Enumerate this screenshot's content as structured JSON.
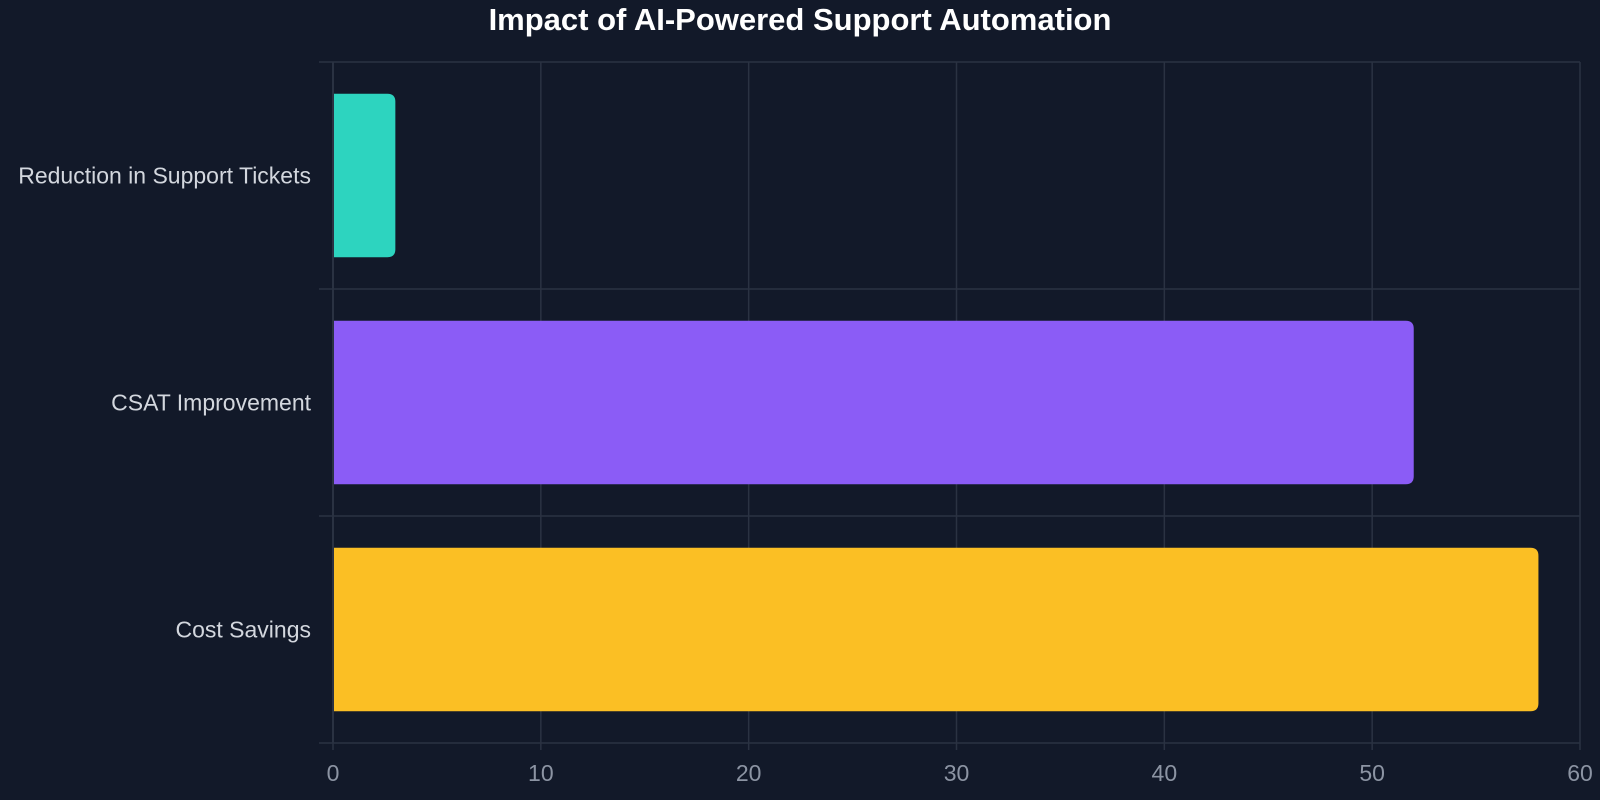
{
  "chart_data": {
    "type": "bar",
    "orientation": "horizontal",
    "title": "Impact of AI-Powered Support Automation",
    "categories": [
      "Reduction in Support Tickets",
      "CSAT Improvement",
      "Cost Savings"
    ],
    "values": [
      3,
      52,
      58
    ],
    "colors": [
      "#2dd4bf",
      "#8b5cf6",
      "#fbbf24"
    ],
    "xlim": [
      0,
      60
    ],
    "xticks": [
      0,
      10,
      20,
      30,
      40,
      50,
      60
    ],
    "xlabel": "",
    "ylabel": "",
    "grid": true,
    "legend": "none"
  },
  "theme": {
    "background": "#121929",
    "grid_color": "#2a3242",
    "title_color": "#ffffff",
    "label_color": "#d3d7de",
    "tick_color": "#8c94a3"
  }
}
